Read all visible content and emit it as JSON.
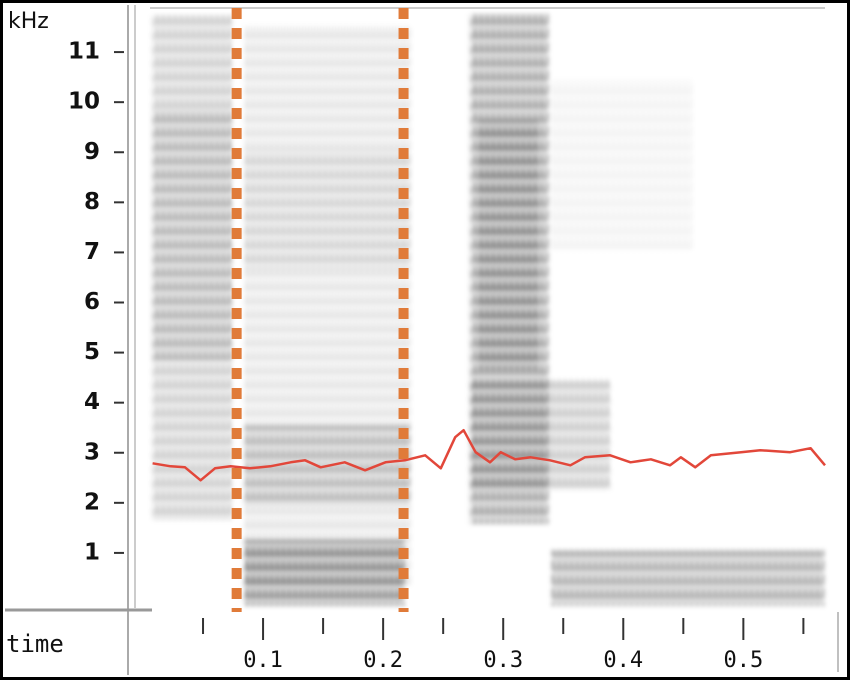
{
  "chart_data": {
    "type": "spectrogram",
    "y_label": "kHz",
    "x_label": "time",
    "ylim": [
      0,
      12
    ],
    "yticks": [
      1,
      2,
      3,
      4,
      5,
      6,
      7,
      8,
      9,
      10,
      11
    ],
    "xlim": [
      0.0075,
      0.568
    ],
    "xticks": [
      0.1,
      0.2,
      0.3,
      0.4,
      0.5
    ],
    "x_minor_ticks": [
      0.05,
      0.15,
      0.25,
      0.35,
      0.45,
      0.55
    ],
    "markers": {
      "color": "#e07b39",
      "x": [
        0.078,
        0.217
      ]
    },
    "series": [
      {
        "color": "#e2473a",
        "x": [
          0.008,
          0.023,
          0.035,
          0.048,
          0.06,
          0.073,
          0.089,
          0.106,
          0.123,
          0.135,
          0.148,
          0.168,
          0.185,
          0.202,
          0.218,
          0.235,
          0.248,
          0.26,
          0.267,
          0.277,
          0.289,
          0.298,
          0.31,
          0.323,
          0.339,
          0.356,
          0.368,
          0.389,
          0.406,
          0.423,
          0.439,
          0.448,
          0.46,
          0.473,
          0.498,
          0.514,
          0.539,
          0.556,
          0.568
        ],
        "values": [
          2.79,
          2.73,
          2.71,
          2.45,
          2.69,
          2.73,
          2.69,
          2.73,
          2.81,
          2.85,
          2.71,
          2.81,
          2.65,
          2.81,
          2.85,
          2.95,
          2.69,
          3.31,
          3.45,
          3.01,
          2.81,
          3.01,
          2.87,
          2.91,
          2.85,
          2.75,
          2.91,
          2.95,
          2.81,
          2.87,
          2.75,
          2.91,
          2.71,
          2.95,
          3.01,
          3.05,
          3.01,
          3.09,
          2.75
        ]
      }
    ]
  }
}
